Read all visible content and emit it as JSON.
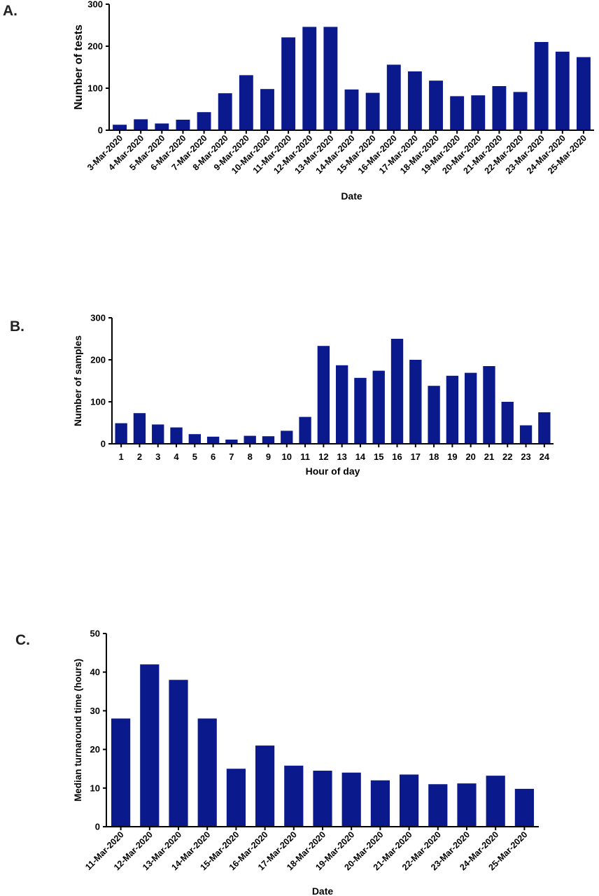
{
  "panels": [
    {
      "label": "A."
    },
    {
      "label": "B."
    },
    {
      "label": "C."
    }
  ],
  "bar_color": "#0a1a8c",
  "chart_data": [
    {
      "type": "bar",
      "title": "",
      "xlabel": "Date",
      "ylabel": "Number of tests",
      "ylim": [
        0,
        300
      ],
      "yticks": [
        0,
        100,
        200,
        300
      ],
      "grid": false,
      "categories": [
        "3-Mar-2020",
        "4-Mar-2020",
        "5-Mar-2020",
        "6-Mar-2020",
        "7-Mar-2020",
        "8-Mar-2020",
        "9-Mar-2020",
        "10-Mar-2020",
        "11-Mar-2020",
        "12-Mar-2020",
        "13-Mar-2020",
        "14-Mar-2020",
        "15-Mar-2020",
        "16-Mar-2020",
        "17-Mar-2020",
        "18-Mar-2020",
        "19-Mar-2020",
        "20-Mar-2020",
        "21-Mar-2020",
        "22-Mar-2020",
        "23-Mar-2020",
        "24-Mar-2020",
        "25-Mar-2020"
      ],
      "values": [
        13,
        26,
        16,
        25,
        43,
        88,
        131,
        98,
        221,
        246,
        246,
        97,
        89,
        156,
        140,
        118,
        81,
        83,
        105,
        91,
        210,
        187,
        174
      ]
    },
    {
      "type": "bar",
      "title": "",
      "xlabel": "Hour of day",
      "ylabel": "Number of samples",
      "ylim": [
        0,
        300
      ],
      "yticks": [
        0,
        100,
        200,
        300
      ],
      "grid": false,
      "categories": [
        "1",
        "2",
        "3",
        "4",
        "5",
        "6",
        "7",
        "8",
        "9",
        "10",
        "11",
        "12",
        "13",
        "14",
        "15",
        "16",
        "17",
        "18",
        "19",
        "20",
        "21",
        "22",
        "23",
        "24"
      ],
      "values": [
        49,
        73,
        46,
        39,
        23,
        17,
        10,
        19,
        18,
        31,
        64,
        233,
        187,
        157,
        174,
        250,
        200,
        138,
        162,
        169,
        185,
        100,
        44,
        75
      ]
    },
    {
      "type": "bar",
      "title": "",
      "xlabel": "Date",
      "ylabel": "Median turnaround time (hours)",
      "ylim": [
        0,
        50
      ],
      "yticks": [
        0,
        10,
        20,
        30,
        40,
        50
      ],
      "grid": false,
      "categories": [
        "11-Mar-2020",
        "12-Mar-2020",
        "13-Mar-2020",
        "14-Mar-2020",
        "15-Mar-2020",
        "16-Mar-2020",
        "17-Mar-2020",
        "18-Mar-2020",
        "19-Mar-2020",
        "20-Mar-2020",
        "21-Mar-2020",
        "22-Mar-2020",
        "23-Mar-2020",
        "24-Mar-2020",
        "25-Mar-2020"
      ],
      "values": [
        28,
        42,
        38,
        28,
        15,
        21,
        15.8,
        14.5,
        14,
        12,
        13.5,
        11,
        11.2,
        13.2,
        9.8
      ]
    }
  ]
}
